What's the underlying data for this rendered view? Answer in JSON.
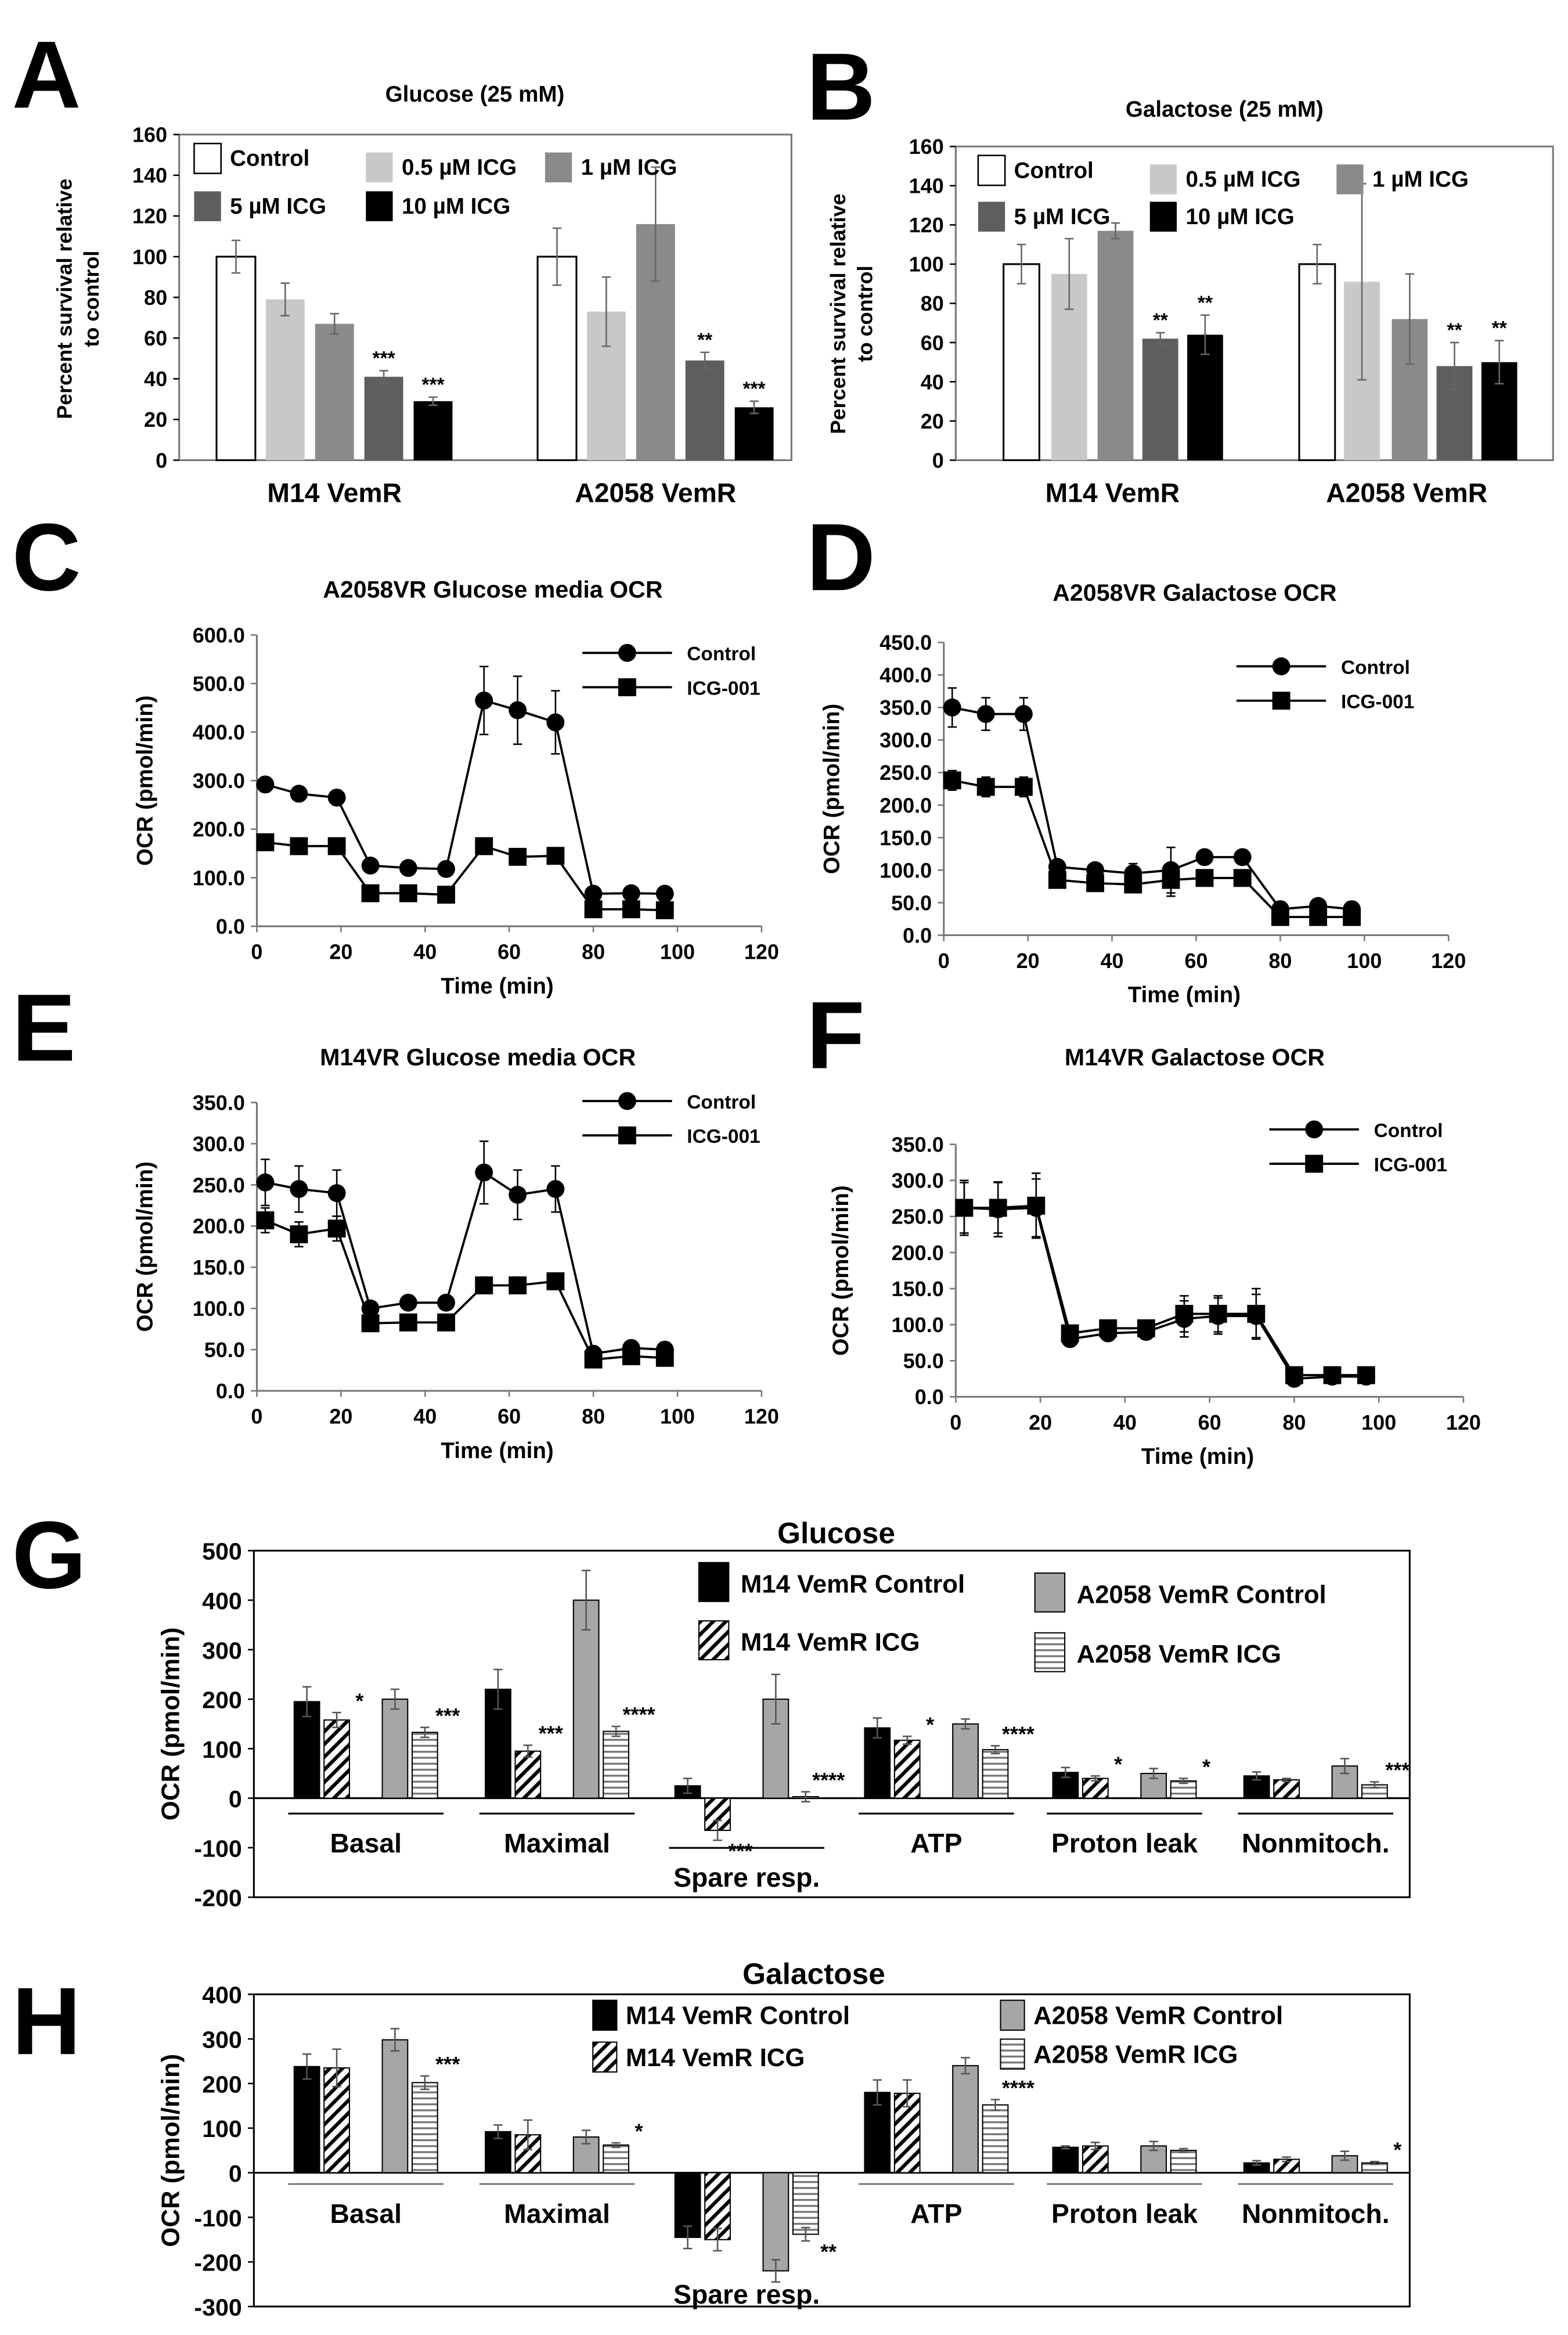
{
  "panel_letters": [
    "A",
    "B",
    "C",
    "D",
    "E",
    "F",
    "G",
    "H"
  ],
  "chart_data": [
    {
      "id": "A",
      "type": "bar",
      "title": "Glucose (25 mM)",
      "ylabel": [
        "Percent survival relative",
        "to control"
      ],
      "ylim": [
        0,
        160
      ],
      "yticks": [
        "0",
        "20",
        "40",
        "60",
        "80",
        "100",
        "120",
        "140",
        "160"
      ],
      "series": [
        "Control",
        "0.5 µM ICG",
        "1 µM ICG",
        "5 µM ICG",
        "10 µM ICG"
      ],
      "colors": [
        "#ffffff",
        "#c8c8c8",
        "#8a8a8a",
        "#5e5e5e",
        "#000000"
      ],
      "groups": [
        {
          "label": "M14 VemR",
          "values": [
            100,
            79,
            67,
            41,
            29
          ],
          "errors": [
            8,
            8,
            5,
            3,
            2
          ],
          "stars": [
            "",
            "",
            "",
            "***",
            "***"
          ]
        },
        {
          "label": "A2058 VemR",
          "values": [
            100,
            73,
            116,
            49,
            26
          ],
          "errors": [
            14,
            17,
            28,
            4,
            3
          ],
          "stars": [
            "",
            "",
            "",
            "**",
            "***"
          ]
        }
      ]
    },
    {
      "id": "B",
      "type": "bar",
      "title": "Galactose (25 mM)",
      "ylabel": [
        "Percent survival relative",
        "to control"
      ],
      "ylim": [
        0,
        160
      ],
      "yticks": [
        "0",
        "20",
        "40",
        "60",
        "80",
        "100",
        "120",
        "140",
        "160"
      ],
      "series": [
        "Control",
        "0.5 µM ICG",
        "1 µM ICG",
        "5 µM ICG",
        "10 µM ICG"
      ],
      "colors": [
        "#ffffff",
        "#c8c8c8",
        "#8a8a8a",
        "#5e5e5e",
        "#000000"
      ],
      "groups": [
        {
          "label": "M14 VemR",
          "values": [
            100,
            95,
            117,
            62,
            64
          ],
          "errors": [
            10,
            18,
            4,
            3,
            10
          ],
          "stars": [
            "",
            "",
            "",
            "**",
            "**"
          ]
        },
        {
          "label": "A2058 VemR",
          "values": [
            100,
            91,
            72,
            48,
            50
          ],
          "errors": [
            10,
            50,
            23,
            12,
            11
          ],
          "stars": [
            "",
            "",
            "",
            "**",
            "**"
          ]
        }
      ]
    },
    {
      "id": "C",
      "type": "line",
      "title": "A2058VR Glucose media OCR",
      "xlabel": "Time (min)",
      "ylabel": "OCR (pmol/min)",
      "xlim": [
        0,
        120
      ],
      "ylim": [
        0,
        600
      ],
      "xticks": [
        "0",
        "20",
        "40",
        "60",
        "80",
        "100",
        "120"
      ],
      "yticks": [
        "0.0",
        "100.0",
        "200.0",
        "300.0",
        "400.0",
        "500.0",
        "600.0"
      ],
      "x": [
        2,
        10,
        19,
        27,
        36,
        45,
        54,
        62,
        71,
        80,
        89,
        97
      ],
      "series": [
        {
          "name": "Control",
          "marker": "circle",
          "values": [
            292,
            273,
            265,
            125,
            120,
            118,
            465,
            445,
            420,
            67,
            68,
            67
          ],
          "errors": [
            15,
            15,
            15,
            8,
            5,
            5,
            70,
            70,
            65,
            5,
            5,
            5
          ]
        },
        {
          "name": "ICG-001",
          "marker": "square",
          "values": [
            173,
            165,
            165,
            68,
            68,
            65,
            165,
            143,
            145,
            35,
            35,
            33
          ],
          "errors": [
            8,
            8,
            8,
            5,
            5,
            5,
            8,
            8,
            8,
            5,
            5,
            5
          ]
        }
      ]
    },
    {
      "id": "D",
      "type": "line",
      "title": "A2058VR Galactose OCR",
      "xlabel": "Time (min)",
      "ylabel": "OCR (pmol/min)",
      "xlim": [
        0,
        120
      ],
      "ylim": [
        0,
        450
      ],
      "xticks": [
        "0",
        "20",
        "40",
        "60",
        "80",
        "100",
        "120"
      ],
      "yticks": [
        "0.0",
        "50.0",
        "100.0",
        "150.0",
        "200.0",
        "250.0",
        "300.0",
        "350.0",
        "400.0",
        "450.0"
      ],
      "x": [
        2,
        10,
        19,
        27,
        36,
        45,
        54,
        62,
        71,
        80,
        89,
        97
      ],
      "series": [
        {
          "name": "Control",
          "marker": "circle",
          "values": [
            350,
            340,
            340,
            105,
            100,
            95,
            100,
            120,
            120,
            40,
            45,
            40
          ],
          "errors": [
            30,
            25,
            25,
            10,
            10,
            15,
            35,
            8,
            8,
            5,
            5,
            5
          ]
        },
        {
          "name": "ICG-001",
          "marker": "square",
          "values": [
            238,
            228,
            228,
            85,
            80,
            78,
            85,
            88,
            88,
            28,
            28,
            28
          ],
          "errors": [
            15,
            15,
            15,
            10,
            10,
            10,
            25,
            10,
            10,
            5,
            5,
            5
          ]
        }
      ]
    },
    {
      "id": "E",
      "type": "line",
      "title": "M14VR Glucose media OCR",
      "xlabel": "Time (min)",
      "ylabel": "OCR (pmol/min)",
      "xlim": [
        0,
        120
      ],
      "ylim": [
        0,
        350
      ],
      "xticks": [
        "0",
        "20",
        "40",
        "60",
        "80",
        "100",
        "120"
      ],
      "yticks": [
        "0.0",
        "50.0",
        "100.0",
        "150.0",
        "200.0",
        "250.0",
        "300.0",
        "350.0"
      ],
      "x": [
        2,
        10,
        19,
        27,
        36,
        45,
        54,
        62,
        71,
        80,
        89,
        97
      ],
      "series": [
        {
          "name": "Control",
          "marker": "circle",
          "values": [
            253,
            245,
            240,
            100,
            107,
            107,
            265,
            238,
            245,
            45,
            52,
            50
          ],
          "errors": [
            28,
            28,
            28,
            8,
            5,
            5,
            38,
            30,
            28,
            5,
            5,
            5
          ]
        },
        {
          "name": "ICG-001",
          "marker": "square",
          "values": [
            207,
            190,
            197,
            82,
            83,
            83,
            128,
            128,
            133,
            38,
            42,
            40
          ],
          "errors": [
            15,
            15,
            15,
            5,
            5,
            5,
            10,
            10,
            10,
            5,
            5,
            5
          ]
        }
      ]
    },
    {
      "id": "F",
      "type": "line",
      "title": "M14VR Galactose OCR",
      "xlabel": "Time (min)",
      "ylabel": "OCR (pmol/min)",
      "xlim": [
        0,
        120
      ],
      "ylim": [
        0,
        350
      ],
      "xticks": [
        "0",
        "20",
        "40",
        "60",
        "80",
        "100",
        "120"
      ],
      "yticks": [
        "0.0",
        "50.0",
        "100.0",
        "150.0",
        "200.0",
        "250.0",
        "300.0",
        "350.0"
      ],
      "x": [
        2,
        10,
        19,
        27,
        36,
        45,
        54,
        62,
        71,
        80,
        89,
        97
      ],
      "series": [
        {
          "name": "Control",
          "marker": "circle",
          "values": [
            262,
            260,
            262,
            80,
            88,
            90,
            108,
            112,
            112,
            25,
            28,
            28
          ],
          "errors": [
            38,
            38,
            40,
            10,
            10,
            10,
            25,
            25,
            30,
            5,
            5,
            5
          ]
        },
        {
          "name": "ICG-001",
          "marker": "square",
          "values": [
            262,
            262,
            265,
            88,
            95,
            95,
            115,
            115,
            115,
            30,
            30,
            30
          ],
          "errors": [
            35,
            35,
            45,
            10,
            10,
            10,
            25,
            25,
            35,
            5,
            5,
            5
          ]
        }
      ]
    },
    {
      "id": "G",
      "type": "bar",
      "title": "Glucose",
      "ylabel": "OCR (pmol/min)",
      "ylim": [
        -200,
        500
      ],
      "yticks": [
        "-200",
        "-100",
        "0",
        "100",
        "200",
        "300",
        "400",
        "500"
      ],
      "series": [
        "M14 VemR Control",
        "M14 VemR ICG",
        "A2058 VemR Control",
        "A2058 VemR ICG"
      ],
      "fills": [
        "solid-black",
        "diagonal-hatch",
        "solid-gray",
        "horizontal-lines"
      ],
      "groups": [
        {
          "label": "Basal",
          "values": [
            195,
            158,
            200,
            133
          ],
          "errors": [
            30,
            15,
            20,
            10
          ],
          "stars": [
            "",
            "*",
            "",
            "***"
          ]
        },
        {
          "label": "Maximal",
          "values": [
            220,
            95,
            400,
            135
          ],
          "errors": [
            40,
            12,
            60,
            10
          ],
          "stars": [
            "",
            "***",
            "",
            "****"
          ]
        },
        {
          "label": "Spare resp.",
          "values": [
            25,
            -65,
            200,
            3
          ],
          "errors": [
            15,
            20,
            50,
            10
          ],
          "stars": [
            "",
            "***",
            "",
            "****"
          ]
        },
        {
          "label": "ATP",
          "values": [
            142,
            117,
            150,
            98
          ],
          "errors": [
            20,
            8,
            10,
            8
          ],
          "stars": [
            "",
            "*",
            "",
            "****"
          ]
        },
        {
          "label": "Proton leak",
          "values": [
            52,
            40,
            50,
            35
          ],
          "errors": [
            10,
            5,
            10,
            5
          ],
          "stars": [
            "",
            "*",
            "",
            "*"
          ]
        },
        {
          "label": "Nonmitoch.",
          "values": [
            45,
            37,
            65,
            27
          ],
          "errors": [
            8,
            3,
            15,
            6
          ],
          "stars": [
            "",
            "",
            "",
            "***"
          ]
        }
      ]
    },
    {
      "id": "H",
      "type": "bar",
      "title": "Galactose",
      "ylabel": "OCR (pmol/min)",
      "ylim": [
        -300,
        400
      ],
      "yticks": [
        "-300",
        "-200",
        "-100",
        "0",
        "100",
        "200",
        "300",
        "400"
      ],
      "series": [
        "M14 VemR Control",
        "M14 VemR ICG",
        "A2058 VemR Control",
        "A2058 VemR ICG"
      ],
      "fills": [
        "solid-black",
        "diagonal-hatch",
        "solid-gray",
        "horizontal-lines"
      ],
      "groups": [
        {
          "label": "Basal",
          "values": [
            238,
            235,
            298,
            202
          ],
          "errors": [
            28,
            42,
            25,
            15
          ],
          "stars": [
            "",
            "",
            "",
            "***"
          ]
        },
        {
          "label": "Maximal",
          "values": [
            92,
            85,
            80,
            62
          ],
          "errors": [
            15,
            33,
            15,
            5
          ],
          "stars": [
            "",
            "",
            "",
            "*"
          ]
        },
        {
          "label": "Spare resp.",
          "values": [
            -145,
            -150,
            -220,
            -138
          ],
          "errors": [
            25,
            25,
            25,
            15
          ],
          "stars": [
            "",
            "",
            "",
            "**"
          ]
        },
        {
          "label": "ATP",
          "values": [
            180,
            178,
            240,
            152
          ],
          "errors": [
            28,
            30,
            18,
            12
          ],
          "stars": [
            "",
            "",
            "",
            "****"
          ]
        },
        {
          "label": "Proton leak",
          "values": [
            57,
            60,
            60,
            50
          ],
          "errors": [
            3,
            8,
            10,
            4
          ],
          "stars": [
            "",
            "",
            "",
            ""
          ]
        },
        {
          "label": "Nonmitoch.",
          "values": [
            22,
            30,
            38,
            22
          ],
          "errors": [
            5,
            5,
            10,
            3
          ],
          "stars": [
            "",
            "",
            "",
            "*"
          ]
        }
      ]
    }
  ]
}
